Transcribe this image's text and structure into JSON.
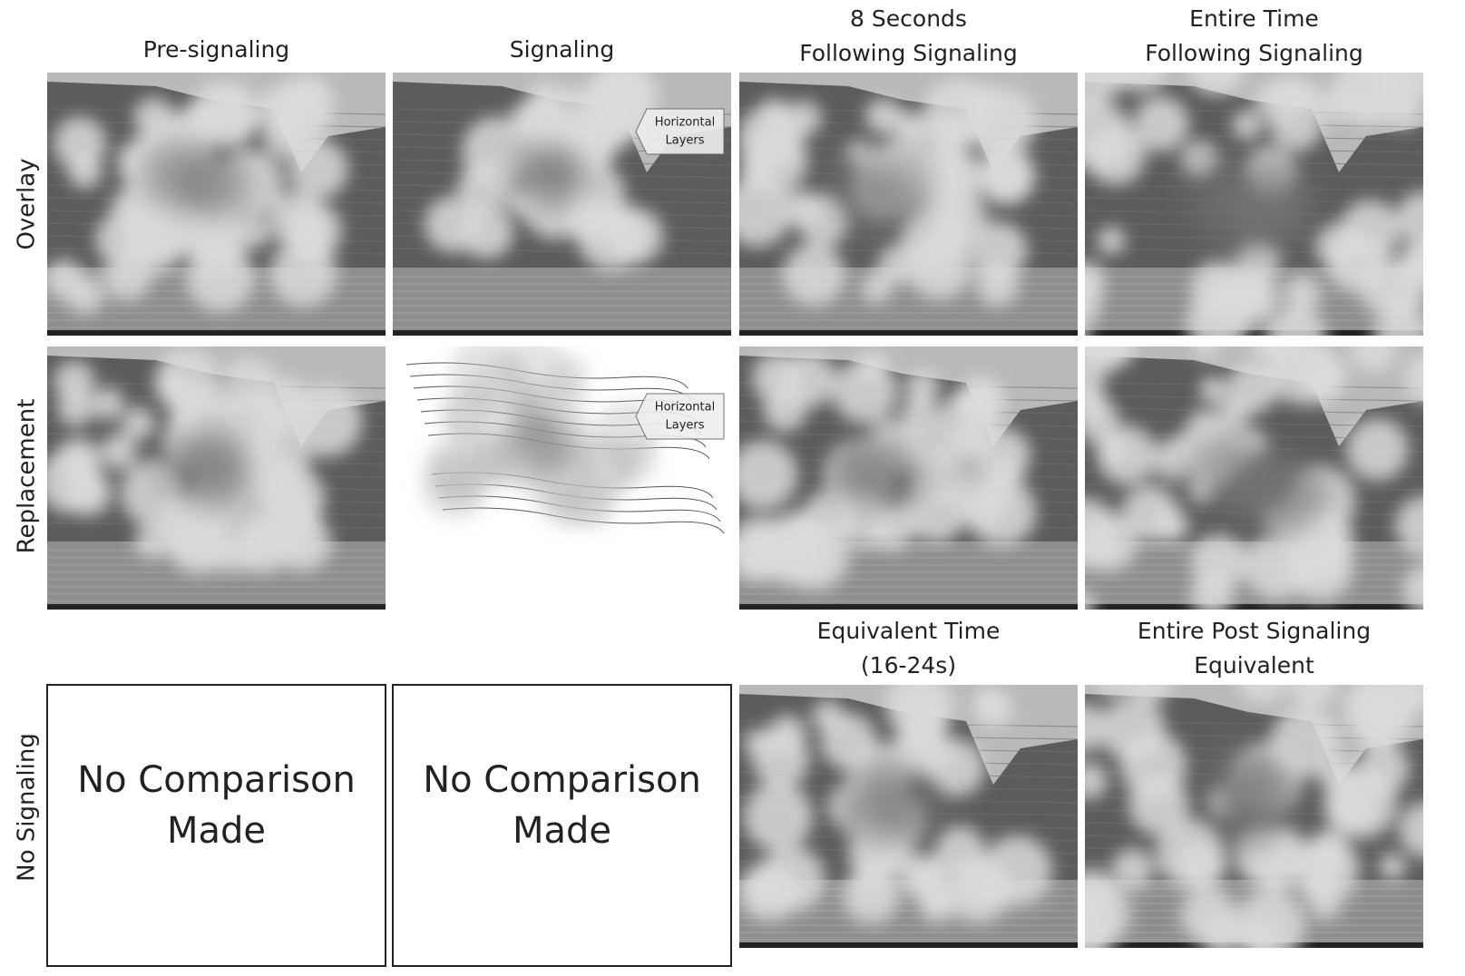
{
  "column_headers": [
    [
      "Pre-signaling"
    ],
    [
      "Signaling"
    ],
    [
      "8 Seconds",
      "Following Signaling"
    ],
    [
      "Entire Time",
      "Following Signaling"
    ]
  ],
  "row_labels": [
    "Overlay",
    "Replacement",
    "No Signaling"
  ],
  "no_signaling_headers": [
    [
      "Equivalent Time",
      "(16-24s)"
    ],
    [
      "Entire Post Signaling",
      "Equivalent"
    ]
  ],
  "no_comparison_cells": [
    [
      "No Comparison",
      "Made"
    ],
    [
      "No Comparison",
      "Made"
    ]
  ],
  "annotations": [
    [
      "Horizontal",
      "Layers"
    ],
    [
      "Horizontal",
      "Layers"
    ]
  ]
}
